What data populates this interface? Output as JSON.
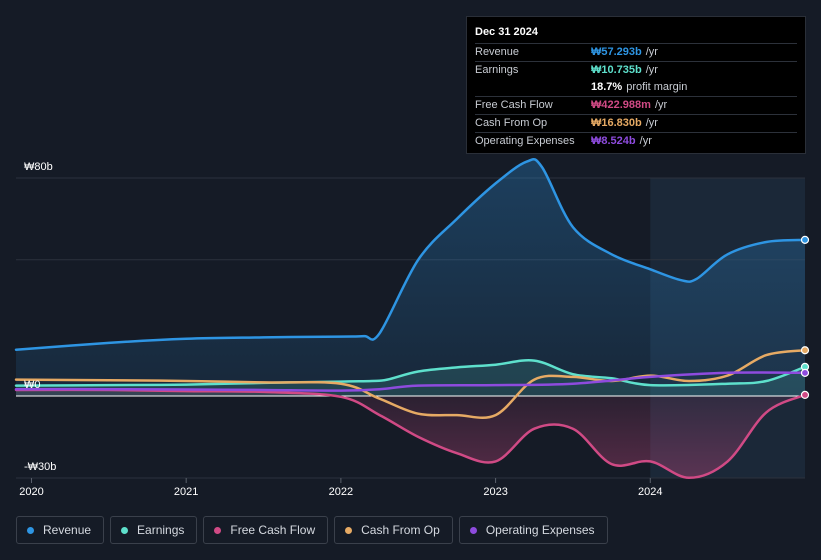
{
  "chart_data": {
    "type": "area",
    "y_axis": {
      "top_label": "₩80b",
      "zero_label": "₩0",
      "bottom_label": "-₩30b",
      "ylim": [
        -35,
        80
      ]
    },
    "x_ticks": [
      "2020",
      "2021",
      "2022",
      "2023",
      "2024"
    ],
    "x_tick_values": [
      2020.0,
      2021.0,
      2022.0,
      2023.0,
      2024.0
    ],
    "xlim": [
      2019.9,
      2025.0
    ],
    "forecast_start": 2024.0,
    "series": [
      {
        "name": "Revenue",
        "color": "#2e95e3",
        "x": [
          2019.9,
          2020.5,
          2021.0,
          2021.5,
          2022.0,
          2022.15,
          2022.25,
          2022.5,
          2022.75,
          2023.0,
          2023.2,
          2023.3,
          2023.5,
          2023.75,
          2024.0,
          2024.2,
          2024.3,
          2024.5,
          2024.75,
          2025.0
        ],
        "values": [
          17,
          19.5,
          21,
          21.5,
          21.8,
          22,
          23,
          50,
          65,
          78,
          86,
          84,
          62,
          52,
          46.5,
          42.5,
          43,
          52,
          56.5,
          57.3
        ]
      },
      {
        "name": "Earnings",
        "color": "#5ee0cc",
        "x": [
          2019.9,
          2020.5,
          2021.0,
          2021.5,
          2022.0,
          2022.2,
          2022.3,
          2022.5,
          2022.75,
          2023.0,
          2023.25,
          2023.5,
          2023.75,
          2024.0,
          2024.5,
          2024.75,
          2025.0
        ],
        "values": [
          3.8,
          4,
          4.2,
          4.8,
          5.3,
          5.5,
          6,
          9,
          10.5,
          11.5,
          13,
          8,
          6.5,
          4,
          4.5,
          5.5,
          10.7
        ]
      },
      {
        "name": "Free Cash Flow",
        "color": "#d04a85",
        "x": [
          2019.9,
          2020.5,
          2021.0,
          2021.5,
          2022.0,
          2022.25,
          2022.5,
          2022.75,
          2023.0,
          2023.25,
          2023.5,
          2023.75,
          2024.0,
          2024.25,
          2024.5,
          2024.75,
          2025.0
        ],
        "values": [
          2.2,
          2.2,
          1.8,
          1.5,
          -0.3,
          -7,
          -15,
          -21,
          -24,
          -12,
          -12,
          -25,
          -24,
          -30,
          -24,
          -6,
          0.4
        ]
      },
      {
        "name": "Cash From Op",
        "color": "#e6aa64",
        "x": [
          2019.9,
          2020.5,
          2021.0,
          2021.5,
          2022.0,
          2022.25,
          2022.5,
          2022.75,
          2023.0,
          2023.25,
          2023.5,
          2023.75,
          2024.0,
          2024.25,
          2024.5,
          2024.75,
          2025.0
        ],
        "values": [
          6,
          5.8,
          5.5,
          5,
          4.5,
          -1,
          -6.5,
          -7,
          -7,
          6,
          7,
          5.5,
          7.5,
          5.5,
          7.5,
          15,
          16.8
        ]
      },
      {
        "name": "Operating Expenses",
        "color": "#8e4bde",
        "x": [
          2019.9,
          2020.5,
          2021.0,
          2021.5,
          2022.0,
          2022.25,
          2022.5,
          2023.0,
          2023.5,
          2024.0,
          2024.5,
          2025.0
        ],
        "values": [
          2.5,
          2.5,
          2.4,
          2.2,
          2.0,
          2.5,
          3.8,
          4.0,
          4.5,
          7.0,
          8.5,
          8.5
        ]
      }
    ]
  },
  "tooltip": {
    "date": "Dec 31 2024",
    "rows": [
      {
        "label": "Revenue",
        "value": "₩57.293b",
        "suffix": "/yr",
        "color": "#2e95e3"
      },
      {
        "label": "Earnings",
        "value": "₩10.735b",
        "suffix": "/yr",
        "color": "#5ee0cc"
      },
      {
        "label": "",
        "value": "18.7%",
        "suffix": "profit margin",
        "color": "#ffffff"
      },
      {
        "label": "Free Cash Flow",
        "value": "₩422.988m",
        "suffix": "/yr",
        "color": "#d04a85"
      },
      {
        "label": "Cash From Op",
        "value": "₩16.830b",
        "suffix": "/yr",
        "color": "#e6aa64"
      },
      {
        "label": "Operating Expenses",
        "value": "₩8.524b",
        "suffix": "/yr",
        "color": "#8e4bde"
      }
    ]
  },
  "legend": [
    {
      "label": "Revenue",
      "color": "#2e95e3"
    },
    {
      "label": "Earnings",
      "color": "#5ee0cc"
    },
    {
      "label": "Free Cash Flow",
      "color": "#d04a85"
    },
    {
      "label": "Cash From Op",
      "color": "#e6aa64"
    },
    {
      "label": "Operating Expenses",
      "color": "#8e4bde"
    }
  ]
}
